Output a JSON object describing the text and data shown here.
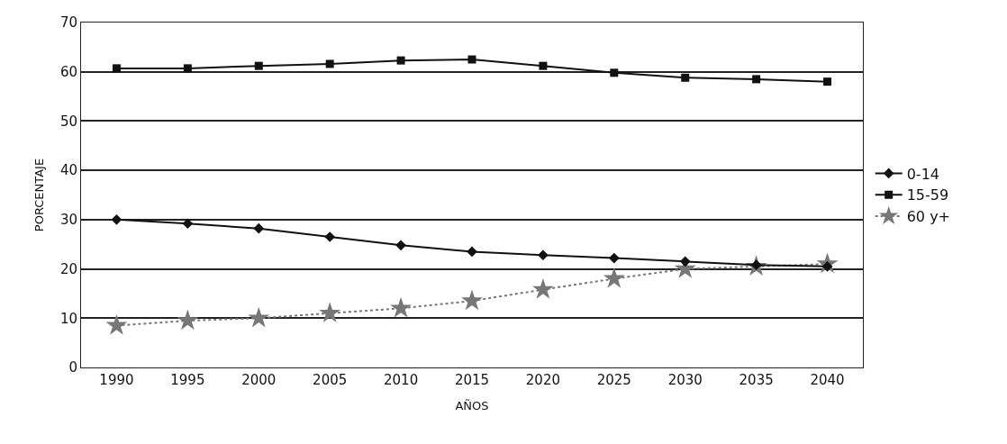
{
  "chart_data": {
    "type": "line",
    "xlabel": "AÑOS",
    "ylabel": "PORCENTAJE",
    "categories": [
      "1990",
      "1995",
      "2000",
      "2005",
      "2010",
      "2015",
      "2020",
      "2025",
      "2030",
      "2035",
      "2040"
    ],
    "series": [
      {
        "name": "0-14",
        "color": "#111111",
        "marker": "diamond",
        "line_style": "solid",
        "values": [
          30,
          29.2,
          28.2,
          26.5,
          24.8,
          23.5,
          22.8,
          22.2,
          21.5,
          20.8,
          20.5
        ]
      },
      {
        "name": "15-59",
        "color": "#111111",
        "marker": "square",
        "line_style": "solid",
        "values": [
          60.7,
          60.7,
          61.2,
          61.6,
          62.3,
          62.5,
          61.2,
          59.8,
          58.8,
          58.5,
          58
        ]
      },
      {
        "name": "60 y+",
        "color": "#777777",
        "marker": "star",
        "line_style": "dotted",
        "values": [
          8.5,
          9.5,
          10,
          11,
          12,
          13.5,
          15.8,
          18,
          20,
          20.5,
          21
        ]
      }
    ],
    "ylim": [
      0,
      70
    ],
    "yticks": [
      0,
      10,
      20,
      30,
      40,
      50,
      60,
      70
    ],
    "grid": "y",
    "legend": "right"
  }
}
